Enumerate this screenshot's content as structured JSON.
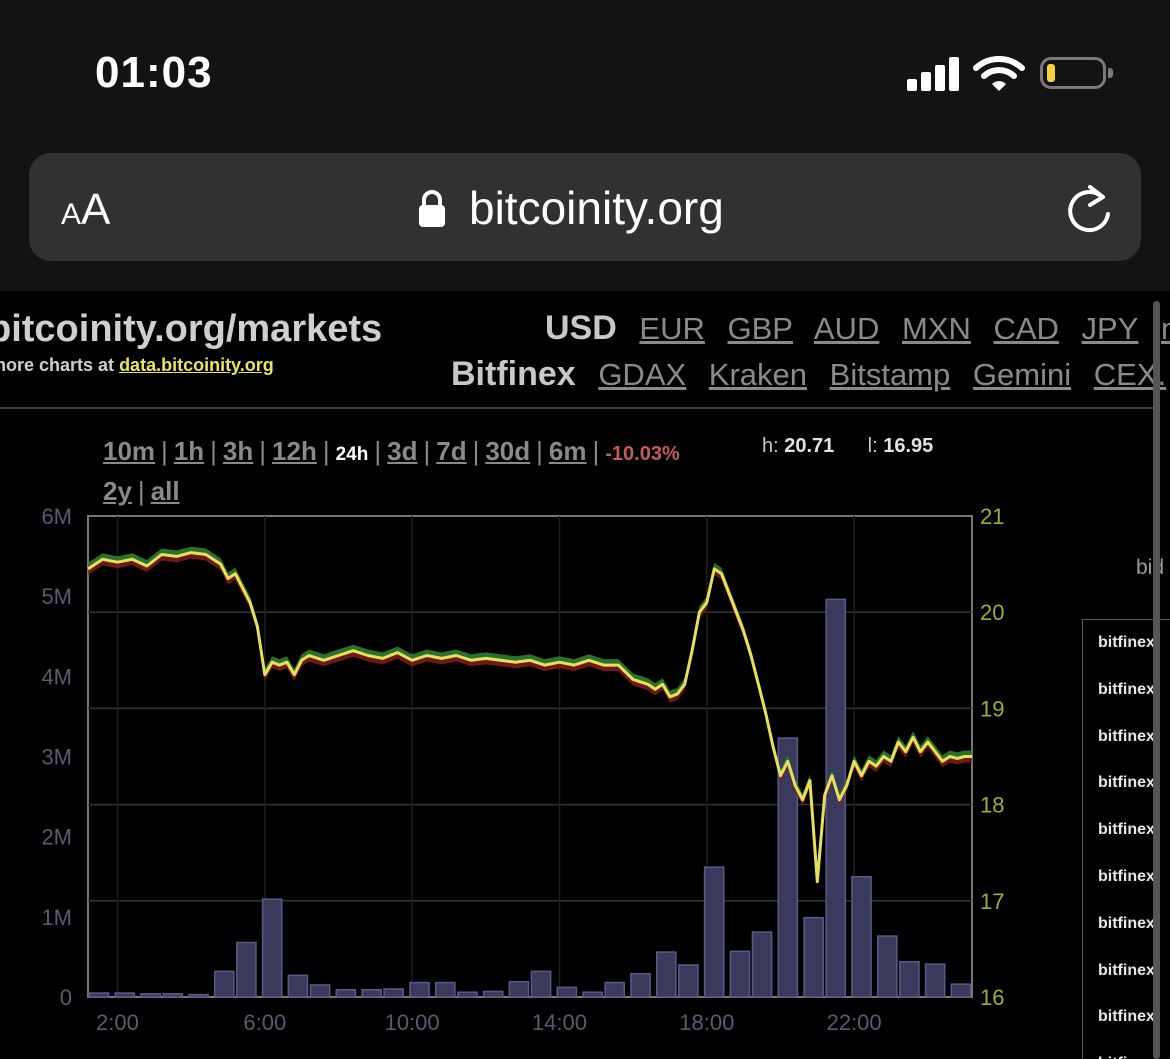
{
  "status": {
    "time": "01:03"
  },
  "browser": {
    "aa_small": "A",
    "aa_big": "A",
    "host": "bitcoinity.org"
  },
  "site": {
    "title": "bitcoinity.org/markets",
    "more_prefix": "more charts at ",
    "more_link": "data.bitcoinity.org"
  },
  "currencies": {
    "selected": "USD",
    "options": [
      "EUR",
      "GBP",
      "AUD",
      "MXN",
      "CAD",
      "JPY",
      "m"
    ]
  },
  "exchanges": {
    "selected": "Bitfinex",
    "options": [
      "GDAX",
      "Kraken",
      "Bitstamp",
      "Gemini",
      "CEX."
    ]
  },
  "periods": {
    "row1": [
      "10m",
      "1h",
      "3h",
      "12h"
    ],
    "current": "24h",
    "row1b": [
      "3d",
      "7d",
      "30d",
      "6m"
    ],
    "row2": [
      "2y",
      "all"
    ],
    "change": "-10.03%",
    "high_label": "h:",
    "high": "20.71",
    "low_label": "l:",
    "low": "16.95"
  },
  "orderbook": {
    "bid_label": "bid",
    "rows": [
      "bitfinex",
      "bitfinex",
      "bitfinex",
      "bitfinex",
      "bitfinex",
      "bitfinex",
      "bitfinex",
      "bitfinex",
      "bitfinex",
      "bitfinex"
    ]
  },
  "colors": {
    "price_line": "#e8e05a",
    "spread_up": "#2e7d32",
    "spread_down": "#8b1e1e",
    "volume_bar": "#3a3a5c"
  },
  "chart_data": {
    "type": "line",
    "title": "",
    "x_ticks": [
      "2:00",
      "6:00",
      "10:00",
      "14:00",
      "18:00",
      "22:00"
    ],
    "y_left_ticks": [
      "0",
      "1M",
      "2M",
      "3M",
      "4M",
      "5M",
      "6M"
    ],
    "y_left_range": [
      0,
      6000000
    ],
    "y_right_ticks": [
      "16",
      "17",
      "18",
      "19",
      "20",
      "21"
    ],
    "y_right_range": [
      16,
      21
    ],
    "x_range_hours": [
      1.2,
      25.2
    ],
    "grid": true,
    "price": {
      "x": [
        1.2,
        1.6,
        2.0,
        2.4,
        2.8,
        3.2,
        3.6,
        4.0,
        4.4,
        4.8,
        5.0,
        5.2,
        5.4,
        5.6,
        5.8,
        6.0,
        6.2,
        6.4,
        6.6,
        6.8,
        7.0,
        7.2,
        7.6,
        8.0,
        8.4,
        8.8,
        9.2,
        9.6,
        10.0,
        10.4,
        10.8,
        11.2,
        11.6,
        12.0,
        12.4,
        12.8,
        13.2,
        13.6,
        14.0,
        14.4,
        14.8,
        15.2,
        15.6,
        16.0,
        16.4,
        16.6,
        16.8,
        17.0,
        17.2,
        17.4,
        17.6,
        17.8,
        18.0,
        18.2,
        18.4,
        18.6,
        18.8,
        19.0,
        19.2,
        19.4,
        19.6,
        19.8,
        20.0,
        20.2,
        20.4,
        20.6,
        20.8,
        21.0,
        21.2,
        21.4,
        21.6,
        21.8,
        22.0,
        22.2,
        22.4,
        22.6,
        22.8,
        23.0,
        23.2,
        23.4,
        23.6,
        23.8,
        24.0,
        24.2,
        24.4,
        24.6,
        24.8,
        25.0,
        25.2
      ],
      "y": [
        20.45,
        20.55,
        20.52,
        20.55,
        20.48,
        20.6,
        20.58,
        20.62,
        20.6,
        20.5,
        20.35,
        20.4,
        20.25,
        20.1,
        19.85,
        19.35,
        19.48,
        19.45,
        19.48,
        19.35,
        19.5,
        19.55,
        19.5,
        19.55,
        19.6,
        19.55,
        19.52,
        19.58,
        19.5,
        19.55,
        19.52,
        19.55,
        19.5,
        19.52,
        19.5,
        19.48,
        19.5,
        19.45,
        19.48,
        19.45,
        19.5,
        19.45,
        19.45,
        19.3,
        19.25,
        19.2,
        19.25,
        19.12,
        19.15,
        19.25,
        19.6,
        20.0,
        20.1,
        20.45,
        20.4,
        20.2,
        20.0,
        19.8,
        19.55,
        19.25,
        18.95,
        18.6,
        18.3,
        18.45,
        18.2,
        18.05,
        18.25,
        17.2,
        18.1,
        18.3,
        18.05,
        18.2,
        18.45,
        18.3,
        18.45,
        18.4,
        18.5,
        18.45,
        18.65,
        18.55,
        18.7,
        18.55,
        18.65,
        18.55,
        18.45,
        18.5,
        18.48,
        18.5,
        18.5
      ]
    },
    "volume": {
      "x": [
        1.5,
        2.2,
        2.9,
        3.5,
        4.2,
        4.9,
        5.5,
        6.2,
        6.9,
        7.5,
        8.2,
        8.9,
        9.5,
        10.2,
        10.9,
        11.5,
        12.2,
        12.9,
        13.5,
        14.2,
        14.9,
        15.5,
        16.2,
        16.9,
        17.5,
        18.2,
        18.9,
        19.5,
        20.2,
        20.9,
        21.5,
        22.2,
        22.9,
        23.5,
        24.2,
        24.9
      ],
      "values": [
        50000,
        50000,
        40000,
        40000,
        30000,
        320000,
        680000,
        1220000,
        270000,
        150000,
        90000,
        90000,
        100000,
        180000,
        180000,
        60000,
        70000,
        190000,
        320000,
        120000,
        60000,
        180000,
        290000,
        560000,
        400000,
        1620000,
        570000,
        810000,
        3230000,
        990000,
        4960000,
        1500000,
        760000,
        440000,
        410000,
        160000
      ]
    }
  }
}
